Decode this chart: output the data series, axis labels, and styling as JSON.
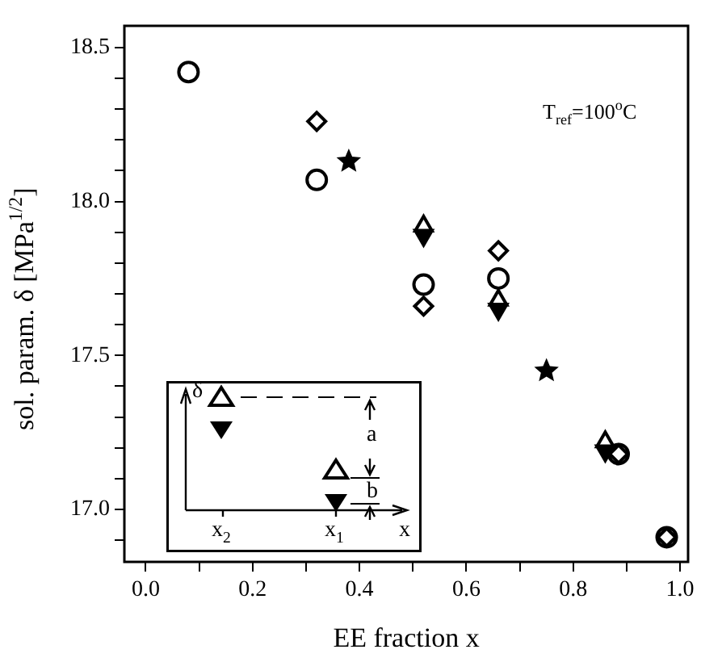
{
  "chart_data": {
    "type": "scatter",
    "xlabel": "EE fraction x",
    "ylabel": "sol. param. δ [MPa$^{1/2}$]",
    "xlim": [
      -0.04,
      1.015
    ],
    "ylim": [
      16.83,
      18.57
    ],
    "xticks": [
      {
        "value": 0,
        "label": "0.0"
      },
      {
        "value": 0.1,
        "label": null
      },
      {
        "value": 0.2,
        "label": "0.2"
      },
      {
        "value": 0.3,
        "label": null
      },
      {
        "value": 0.4,
        "label": "0.4"
      },
      {
        "value": 0.5,
        "label": null
      },
      {
        "value": 0.6,
        "label": "0.6"
      },
      {
        "value": 0.7,
        "label": null
      },
      {
        "value": 0.8,
        "label": "0.8"
      },
      {
        "value": 0.9,
        "label": null
      },
      {
        "value": 1,
        "label": "1.0"
      }
    ],
    "yticks": [
      {
        "value": 16.9,
        "label": null
      },
      {
        "value": 17,
        "label": "17.0"
      },
      {
        "value": 17.1,
        "label": null
      },
      {
        "value": 17.2,
        "label": null
      },
      {
        "value": 17.3,
        "label": null
      },
      {
        "value": 17.4,
        "label": null
      },
      {
        "value": 17.5,
        "label": "17.5"
      },
      {
        "value": 17.6,
        "label": null
      },
      {
        "value": 17.7,
        "label": null
      },
      {
        "value": 17.8,
        "label": null
      },
      {
        "value": 17.9,
        "label": null
      },
      {
        "value": 18,
        "label": "18.0"
      },
      {
        "value": 18.1,
        "label": null
      },
      {
        "value": 18.2,
        "label": null
      },
      {
        "value": 18.3,
        "label": null
      },
      {
        "value": 18.4,
        "label": null
      },
      {
        "value": 18.5,
        "label": "18.5"
      }
    ],
    "grid": false,
    "legend": false,
    "annotations": [
      "T$_{ref}$=100$^{o}$C",
      "δ",
      "a",
      "b",
      "x$_{2}$",
      "x$_{1}$",
      "x"
    ],
    "series": [
      {
        "marker": "circle",
        "color": "#000000",
        "x": [
          0.08,
          0.32,
          0.52,
          0.66,
          0.885,
          0.975
        ],
        "values": [
          18.42,
          18.07,
          17.73,
          17.75,
          17.18,
          16.91
        ]
      },
      {
        "marker": "diamond",
        "color": "#000000",
        "x": [
          0.32,
          0.52,
          0.66,
          0.885,
          0.975
        ],
        "values": [
          18.26,
          17.66,
          17.84,
          17.18,
          16.91
        ]
      },
      {
        "marker": "star",
        "color": "#000000",
        "x": [
          0.38,
          0.75
        ],
        "values": [
          18.13,
          17.45
        ]
      },
      {
        "marker": "triangle",
        "color": "#000000",
        "x": [
          0.52,
          0.66,
          0.86
        ],
        "values": [
          17.92,
          17.68,
          17.22
        ]
      },
      {
        "marker": "triangle_down",
        "color": "#000000",
        "x": [
          0.52,
          0.66,
          0.86
        ],
        "values": [
          17.89,
          17.65,
          17.19
        ]
      }
    ]
  }
}
